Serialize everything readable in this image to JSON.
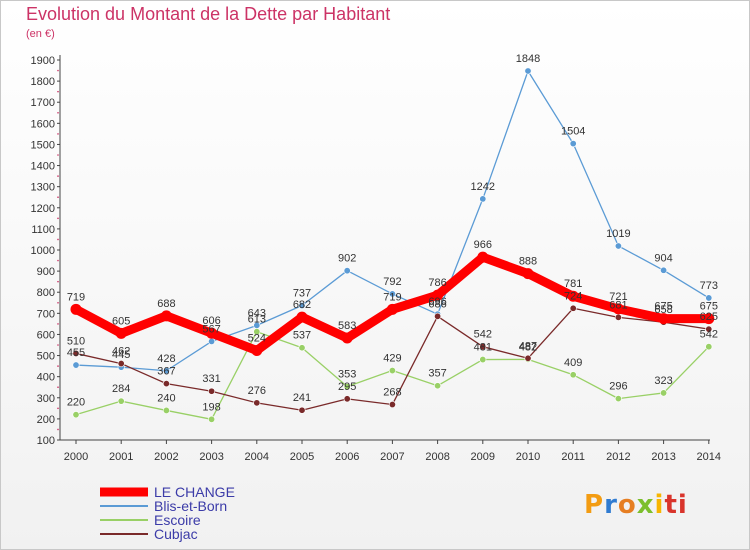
{
  "title": "Evolution du Montant de la Dette par Habitant",
  "subtitle": "(en €)",
  "logo": "Proxiti",
  "chart_data": {
    "type": "line",
    "x": [
      "2000",
      "2001",
      "2002",
      "2003",
      "2004",
      "2005",
      "2006",
      "2007",
      "2008",
      "2009",
      "2010",
      "2011",
      "2012",
      "2013",
      "2014"
    ],
    "ylim": [
      100,
      1900
    ],
    "yticks": [
      100,
      200,
      300,
      400,
      500,
      600,
      700,
      800,
      900,
      1000,
      1100,
      1200,
      1300,
      1400,
      1500,
      1600,
      1700,
      1800,
      1900
    ],
    "grid": false,
    "legend_position": "bottom-left",
    "series": [
      {
        "name": "Blis-et-Born",
        "color": "#5b9bd5",
        "values": [
          455,
          445,
          428,
          567,
          643,
          737,
          902,
          792,
          696,
          1242,
          1848,
          1504,
          1019,
          904,
          773
        ]
      },
      {
        "name": "Escoire",
        "color": "#99d066",
        "values": [
          220,
          284,
          240,
          198,
          613,
          537,
          353,
          429,
          357,
          481,
          482,
          409,
          296,
          323,
          542
        ]
      },
      {
        "name": "Cubjac",
        "color": "#7a2a2a",
        "values": [
          510,
          462,
          367,
          331,
          276,
          241,
          295,
          268,
          686,
          542,
          487,
          724,
          681,
          658,
          625
        ]
      },
      {
        "name": "LE CHANGE",
        "color": "#ff0000",
        "values": [
          719,
          605,
          688,
          606,
          524,
          682,
          583,
          719,
          786,
          966,
          888,
          781,
          721,
          675,
          675
        ]
      }
    ],
    "legend_order": [
      "LE CHANGE",
      "Blis-et-Born",
      "Escoire",
      "Cubjac"
    ]
  }
}
